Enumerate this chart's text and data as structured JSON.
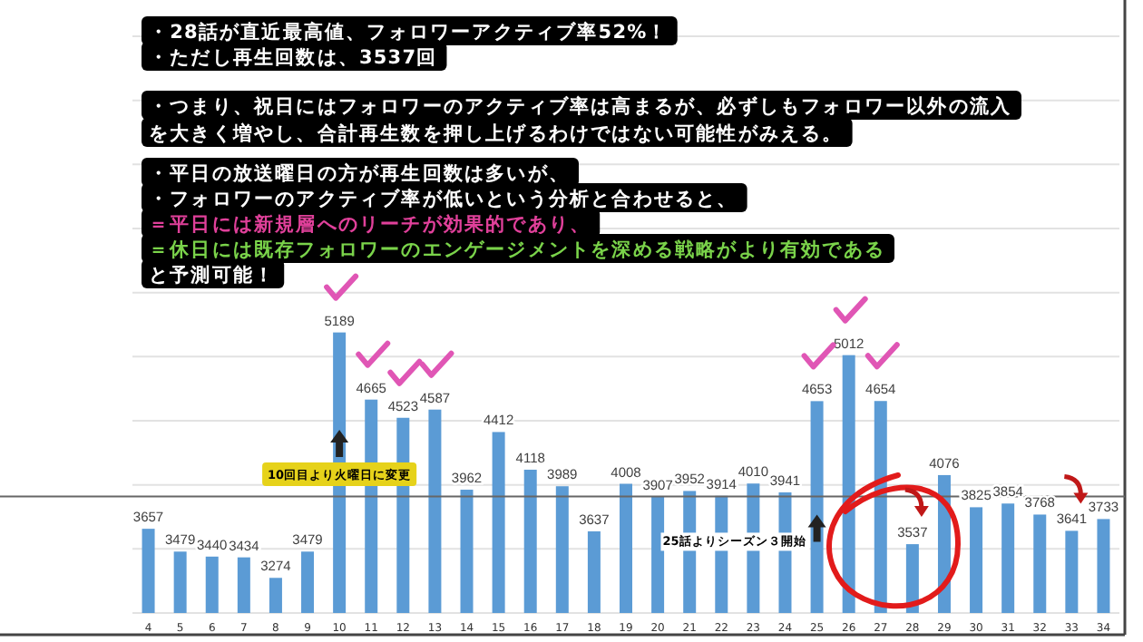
{
  "chart_data": {
    "type": "bar",
    "categories": [
      "4",
      "5",
      "6",
      "7",
      "8",
      "9",
      "10",
      "11",
      "12",
      "13",
      "14",
      "15",
      "16",
      "17",
      "18",
      "19",
      "20",
      "21",
      "22",
      "23",
      "24",
      "25",
      "26",
      "27",
      "28",
      "29",
      "30",
      "31",
      "32",
      "33",
      "34"
    ],
    "values": [
      3657,
      3479,
      3440,
      3434,
      3274,
      3479,
      5189,
      4665,
      4523,
      4587,
      3962,
      4412,
      4118,
      3989,
      3637,
      4008,
      3907,
      3952,
      3914,
      4010,
      3941,
      4653,
      5012,
      4654,
      3537,
      4076,
      3825,
      3854,
      3768,
      3641,
      3733
    ],
    "color": "#5b9bd5",
    "data_labels": true,
    "ylim": [
      3000,
      7500
    ],
    "yticks": [
      {
        "value": 3000,
        "label": null
      },
      {
        "value": 3500,
        "label": null
      },
      {
        "value": 4000,
        "label": null
      },
      {
        "value": 4500,
        "label": null
      },
      {
        "value": 5000,
        "label": null
      },
      {
        "value": 5500,
        "label": null
      },
      {
        "value": 6000,
        "label": null
      },
      {
        "value": 6500,
        "label": null
      },
      {
        "value": 7000,
        "label": null
      },
      {
        "value": 7500,
        "label": null
      }
    ],
    "grid": "y",
    "tick_labels": "x",
    "ref_lines": [
      {
        "axis": "y",
        "value": 3910,
        "color": "#666666"
      }
    ],
    "annotations": [
      "・28話が直近最高値、フォロワーアクティブ率52%！",
      "・ただし再生回数は、3537回",
      "・つまり、祝日にはフォロワーのアクティブ率は高まるが、必ずしもフォロワー以外の流入",
      "を大きく増やし、合計再生数を押し上げるわけではない可能性がみえる。",
      "・平日の放送曜日の方が再生回数は多いが、",
      "・フォロワーのアクティブ率が低いという分析と合わせると、",
      "＝平日には新規層へのリーチが効果的であり、",
      "＝休日には既存フォロワーのエンゲージメントを深める戦略がより有効である",
      "と予測可能！",
      {
        "text": "10回目より火曜日に変更",
        "x": "10",
        "y": 4090
      },
      {
        "text": "25話よりシーズン３開始",
        "x": "24",
        "y": 3570
      }
    ]
  }
}
